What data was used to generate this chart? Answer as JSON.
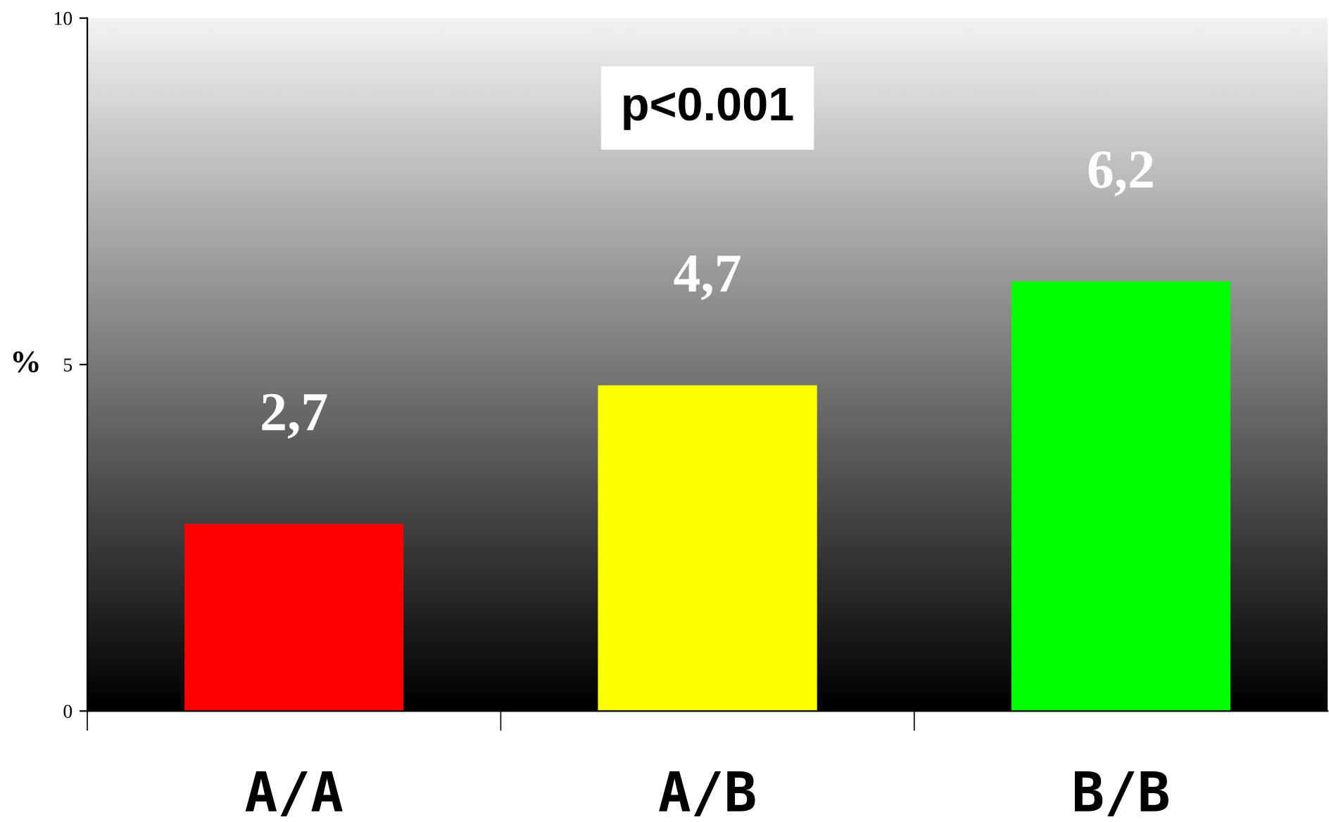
{
  "chart_data": {
    "type": "bar",
    "ylabel": "%",
    "categories": [
      "A/A",
      "A/B",
      "B/B"
    ],
    "values": [
      2.7,
      4.7,
      6.2
    ],
    "colors": [
      "#ff0000",
      "#ffff00",
      "#00ff00"
    ],
    "value_labels": [
      "2,7",
      "4,7",
      "6,2"
    ],
    "ylim": [
      0,
      10
    ],
    "yticks": [
      0,
      5,
      10
    ],
    "grid": false,
    "legend": false,
    "annotations": [
      "p<0.001"
    ]
  }
}
